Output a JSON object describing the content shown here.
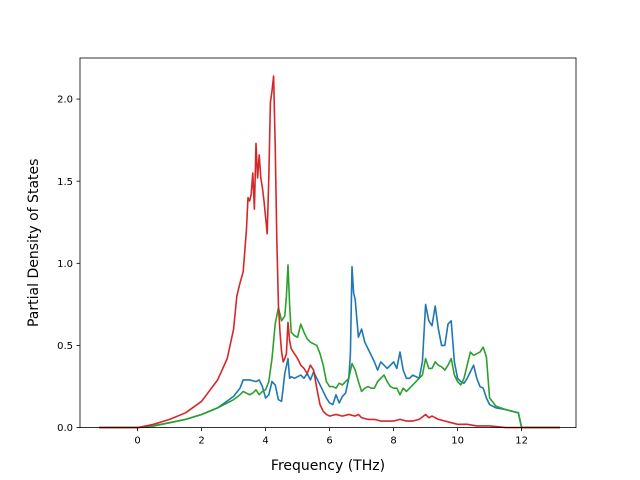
{
  "chart_data": {
    "type": "line",
    "title": "",
    "xlabel": "Frequency (THz)",
    "ylabel": "Partial Density of States",
    "xlim": [
      -1.8,
      13.7
    ],
    "ylim": [
      0.0,
      2.25
    ],
    "xticks": [
      0,
      2,
      4,
      6,
      8,
      10,
      12
    ],
    "xtick_labels": [
      "0",
      "2",
      "4",
      "6",
      "8",
      "10",
      "12"
    ],
    "yticks": [
      0.0,
      0.5,
      1.0,
      1.5,
      2.0
    ],
    "ytick_labels": [
      "0.0",
      "0.5",
      "1.0",
      "1.5",
      "2.0"
    ],
    "grid": false,
    "legend": "none",
    "series": [
      {
        "color": "#1f77b4",
        "x": [
          -1.2,
          0.0,
          0.5,
          1.0,
          1.5,
          2.0,
          2.5,
          3.0,
          3.2,
          3.3,
          3.5,
          3.7,
          3.8,
          3.9,
          4.0,
          4.1,
          4.2,
          4.3,
          4.4,
          4.5,
          4.6,
          4.7,
          4.75,
          4.8,
          4.9,
          5.0,
          5.1,
          5.2,
          5.3,
          5.4,
          5.5,
          5.6,
          5.7,
          5.8,
          5.9,
          6.0,
          6.1,
          6.2,
          6.3,
          6.4,
          6.5,
          6.6,
          6.65,
          6.7,
          6.75,
          6.8,
          6.9,
          7.0,
          7.1,
          7.2,
          7.3,
          7.4,
          7.5,
          7.6,
          7.7,
          7.8,
          7.9,
          8.0,
          8.1,
          8.2,
          8.3,
          8.4,
          8.5,
          8.6,
          8.7,
          8.8,
          8.9,
          9.0,
          9.1,
          9.2,
          9.3,
          9.4,
          9.5,
          9.6,
          9.7,
          9.8,
          9.9,
          10.0,
          10.1,
          10.2,
          10.3,
          10.4,
          10.5,
          10.6,
          10.7,
          10.8,
          10.9,
          11.0,
          11.2,
          11.5,
          11.9,
          12.0,
          13.2
        ],
        "values": [
          0.0,
          0.0,
          0.01,
          0.03,
          0.05,
          0.08,
          0.12,
          0.19,
          0.24,
          0.29,
          0.29,
          0.28,
          0.29,
          0.25,
          0.18,
          0.2,
          0.28,
          0.26,
          0.17,
          0.16,
          0.33,
          0.42,
          0.3,
          0.31,
          0.3,
          0.31,
          0.32,
          0.3,
          0.33,
          0.29,
          0.34,
          0.3,
          0.26,
          0.22,
          0.18,
          0.15,
          0.14,
          0.2,
          0.15,
          0.19,
          0.21,
          0.3,
          0.45,
          0.98,
          0.82,
          0.78,
          0.55,
          0.6,
          0.52,
          0.48,
          0.44,
          0.4,
          0.35,
          0.4,
          0.38,
          0.36,
          0.38,
          0.4,
          0.36,
          0.46,
          0.35,
          0.3,
          0.3,
          0.32,
          0.31,
          0.3,
          0.4,
          0.75,
          0.65,
          0.62,
          0.74,
          0.6,
          0.5,
          0.5,
          0.63,
          0.65,
          0.4,
          0.3,
          0.28,
          0.27,
          0.3,
          0.34,
          0.38,
          0.3,
          0.25,
          0.24,
          0.18,
          0.14,
          0.12,
          0.11,
          0.09,
          0.0,
          0.0
        ]
      },
      {
        "color": "#2ca02c",
        "x": [
          -1.2,
          0.0,
          0.5,
          1.0,
          1.5,
          2.0,
          2.5,
          3.0,
          3.2,
          3.3,
          3.5,
          3.6,
          3.7,
          3.8,
          3.9,
          4.0,
          4.1,
          4.2,
          4.3,
          4.4,
          4.5,
          4.6,
          4.65,
          4.7,
          4.75,
          4.8,
          4.9,
          5.0,
          5.1,
          5.2,
          5.3,
          5.4,
          5.5,
          5.6,
          5.7,
          5.8,
          5.9,
          6.0,
          6.1,
          6.2,
          6.3,
          6.4,
          6.5,
          6.6,
          6.7,
          6.8,
          6.9,
          7.0,
          7.1,
          7.2,
          7.3,
          7.4,
          7.5,
          7.6,
          7.7,
          7.8,
          7.9,
          8.0,
          8.1,
          8.2,
          8.3,
          8.4,
          8.5,
          8.6,
          8.7,
          8.8,
          8.9,
          9.0,
          9.1,
          9.2,
          9.3,
          9.4,
          9.5,
          9.6,
          9.7,
          9.8,
          9.9,
          10.0,
          10.1,
          10.2,
          10.3,
          10.4,
          10.5,
          10.6,
          10.7,
          10.8,
          10.9,
          11.0,
          11.2,
          11.5,
          11.9,
          12.0,
          13.2
        ],
        "values": [
          0.0,
          0.0,
          0.01,
          0.03,
          0.05,
          0.08,
          0.12,
          0.17,
          0.2,
          0.22,
          0.2,
          0.21,
          0.23,
          0.2,
          0.22,
          0.23,
          0.28,
          0.42,
          0.63,
          0.73,
          0.65,
          0.68,
          0.8,
          0.99,
          0.75,
          0.58,
          0.56,
          0.55,
          0.63,
          0.58,
          0.54,
          0.52,
          0.51,
          0.5,
          0.45,
          0.38,
          0.28,
          0.25,
          0.25,
          0.24,
          0.27,
          0.26,
          0.28,
          0.3,
          0.39,
          0.35,
          0.28,
          0.22,
          0.24,
          0.25,
          0.24,
          0.24,
          0.28,
          0.3,
          0.32,
          0.28,
          0.25,
          0.24,
          0.24,
          0.2,
          0.24,
          0.22,
          0.24,
          0.26,
          0.28,
          0.3,
          0.32,
          0.42,
          0.36,
          0.36,
          0.4,
          0.38,
          0.37,
          0.35,
          0.38,
          0.42,
          0.32,
          0.28,
          0.26,
          0.3,
          0.38,
          0.46,
          0.44,
          0.45,
          0.46,
          0.49,
          0.43,
          0.18,
          0.13,
          0.11,
          0.09,
          0.0,
          0.0
        ]
      },
      {
        "color": "#d62728",
        "x": [
          -1.2,
          0.0,
          0.5,
          1.0,
          1.5,
          2.0,
          2.5,
          2.8,
          3.0,
          3.1,
          3.2,
          3.3,
          3.4,
          3.45,
          3.5,
          3.55,
          3.6,
          3.65,
          3.7,
          3.75,
          3.8,
          3.85,
          3.9,
          3.95,
          4.0,
          4.05,
          4.1,
          4.15,
          4.2,
          4.25,
          4.3,
          4.35,
          4.4,
          4.45,
          4.5,
          4.55,
          4.6,
          4.65,
          4.7,
          4.75,
          4.8,
          4.9,
          5.0,
          5.1,
          5.2,
          5.3,
          5.4,
          5.5,
          5.6,
          5.7,
          5.8,
          5.9,
          6.0,
          6.2,
          6.4,
          6.6,
          6.8,
          6.9,
          7.0,
          7.2,
          7.4,
          7.6,
          7.8,
          8.0,
          8.2,
          8.4,
          8.6,
          8.8,
          9.0,
          9.1,
          9.2,
          9.4,
          9.6,
          9.8,
          10.0,
          10.3,
          10.6,
          11.0,
          11.5,
          12.0,
          13.2
        ],
        "values": [
          0.0,
          0.0,
          0.02,
          0.05,
          0.09,
          0.16,
          0.29,
          0.42,
          0.6,
          0.8,
          0.88,
          0.95,
          1.2,
          1.4,
          1.38,
          1.42,
          1.55,
          1.33,
          1.73,
          1.52,
          1.66,
          1.52,
          1.46,
          1.38,
          1.28,
          1.18,
          1.52,
          1.98,
          2.05,
          2.14,
          1.72,
          1.15,
          0.75,
          0.58,
          0.46,
          0.4,
          0.42,
          0.45,
          0.64,
          0.53,
          0.48,
          0.45,
          0.42,
          0.38,
          0.36,
          0.33,
          0.38,
          0.35,
          0.24,
          0.14,
          0.1,
          0.08,
          0.07,
          0.08,
          0.07,
          0.08,
          0.07,
          0.08,
          0.06,
          0.05,
          0.05,
          0.04,
          0.04,
          0.04,
          0.05,
          0.04,
          0.04,
          0.05,
          0.08,
          0.06,
          0.07,
          0.05,
          0.04,
          0.03,
          0.02,
          0.02,
          0.01,
          0.01,
          0.0,
          0.0,
          0.0
        ]
      }
    ]
  }
}
